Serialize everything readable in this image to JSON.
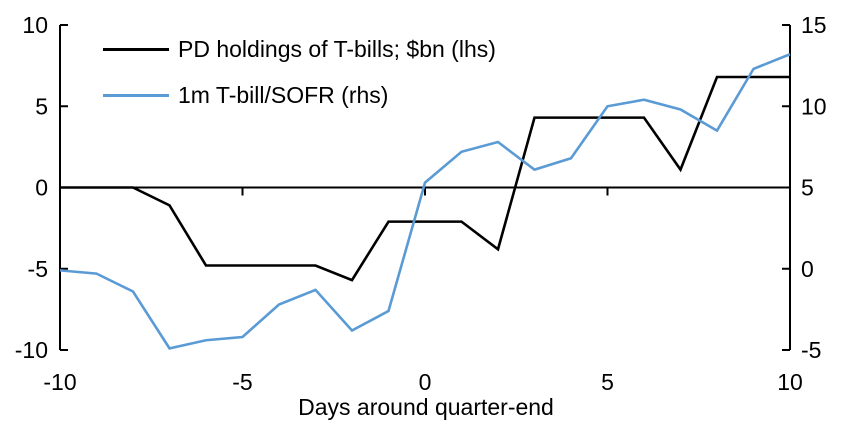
{
  "chart": {
    "background": "#ffffff",
    "axis_color": "#000000",
    "legend": [
      {
        "label": "PD holdings of T-bills; $bn (lhs)",
        "color": "#000000"
      },
      {
        "label": "1m T-bill/SOFR (rhs)",
        "color": "#5B9BD5"
      }
    ]
  },
  "chart_data": {
    "type": "line",
    "title": "",
    "xlabel": "Days around quarter-end",
    "x": [
      -10,
      -9,
      -8,
      -7,
      -6,
      -5,
      -4,
      -3,
      -2,
      -1,
      0,
      1,
      2,
      3,
      4,
      5,
      6,
      7,
      8,
      9,
      10
    ],
    "x_axis": {
      "min": -10,
      "max": 10,
      "ticks": [
        -10,
        -5,
        0,
        5,
        10
      ]
    },
    "left_axis": {
      "min": -10,
      "max": 10,
      "ticks": [
        10,
        5,
        0,
        -5,
        -10
      ]
    },
    "right_axis": {
      "min": -5,
      "max": 15,
      "ticks": [
        15,
        10,
        5,
        0,
        -5
      ]
    },
    "grid": false,
    "zero_line": true,
    "legend_position": "top-left",
    "series": [
      {
        "name": "PD holdings of T-bills; $bn (lhs)",
        "axis": "left",
        "color": "#000000",
        "values": [
          0,
          0,
          0,
          -1.1,
          -4.8,
          -4.8,
          -4.8,
          -4.8,
          -5.7,
          -2.1,
          -2.1,
          -2.1,
          -3.8,
          4.3,
          4.3,
          4.3,
          4.3,
          1.1,
          6.8,
          6.8,
          6.8
        ]
      },
      {
        "name": "1m T-bill/SOFR (rhs)",
        "axis": "right",
        "color": "#5B9BD5",
        "values": [
          -0.1,
          -0.3,
          -1.4,
          -4.9,
          -4.4,
          -4.2,
          -2.2,
          -1.3,
          -3.8,
          -2.6,
          5.3,
          7.2,
          7.8,
          6.1,
          6.8,
          10.0,
          10.4,
          9.8,
          8.5,
          12.3,
          13.2
        ]
      }
    ]
  }
}
